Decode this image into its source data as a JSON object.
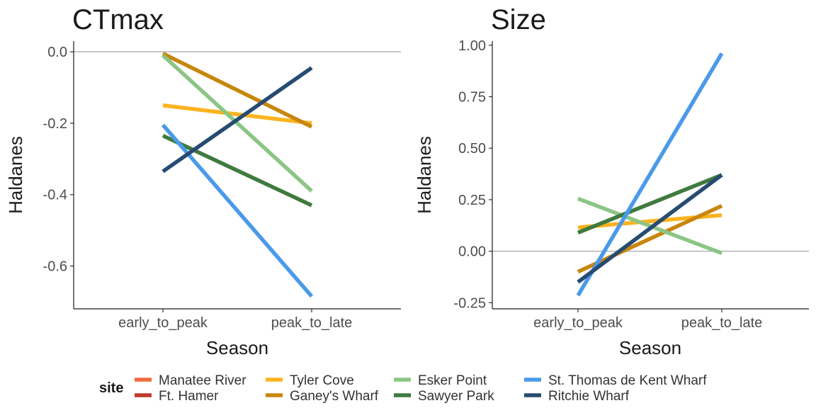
{
  "chart_data": [
    {
      "type": "line",
      "title": "CTmax",
      "xlabel": "Season",
      "ylabel": "Haldanes",
      "categories": [
        "early_to_peak",
        "peak_to_late"
      ],
      "yticks": [
        "0.0",
        "-0.2",
        "-0.4",
        "-0.6"
      ],
      "ytick_values": [
        0.0,
        -0.2,
        -0.4,
        -0.6
      ],
      "ylim": [
        -0.72,
        0.03
      ],
      "reference_line": 0,
      "series": [
        {
          "name": "Tyler Cove",
          "values": [
            -0.15,
            -0.2
          ]
        },
        {
          "name": "Ganey's Wharf",
          "values": [
            -0.005,
            -0.21
          ]
        },
        {
          "name": "Esker Point",
          "values": [
            -0.01,
            -0.39
          ]
        },
        {
          "name": "Sawyer Park",
          "values": [
            -0.235,
            -0.43
          ]
        },
        {
          "name": "St. Thomas de Kent Wharf",
          "values": [
            -0.205,
            -0.685
          ]
        },
        {
          "name": "Ritchie Wharf",
          "values": [
            -0.335,
            -0.045
          ]
        }
      ]
    },
    {
      "type": "line",
      "title": "Size",
      "xlabel": "Season",
      "ylabel": "Haldanes",
      "categories": [
        "early_to_peak",
        "peak_to_late"
      ],
      "yticks": [
        "1.00",
        "0.75",
        "0.50",
        "0.25",
        "0.00",
        "-0.25"
      ],
      "ytick_values": [
        1.0,
        0.75,
        0.5,
        0.25,
        0.0,
        -0.25
      ],
      "ylim": [
        -0.28,
        1.02
      ],
      "reference_line": 0,
      "series": [
        {
          "name": "Tyler Cove",
          "values": [
            0.115,
            0.175
          ]
        },
        {
          "name": "Ganey's Wharf",
          "values": [
            -0.1,
            0.22
          ]
        },
        {
          "name": "Esker Point",
          "values": [
            0.255,
            -0.01
          ]
        },
        {
          "name": "Sawyer Park",
          "values": [
            0.09,
            0.37
          ]
        },
        {
          "name": "St. Thomas de Kent Wharf",
          "values": [
            -0.215,
            0.96
          ]
        },
        {
          "name": "Ritchie Wharf",
          "values": [
            -0.15,
            0.37
          ]
        }
      ]
    }
  ],
  "legend": {
    "title": "site",
    "position": "bottom",
    "items": [
      {
        "name": "Manatee River",
        "color": "#f26a3d"
      },
      {
        "name": "Ft. Hamer",
        "color": "#c0392b"
      },
      {
        "name": "Tyler Cove",
        "color": "#fbb31f"
      },
      {
        "name": "Ganey's Wharf",
        "color": "#c8860d"
      },
      {
        "name": "Esker Point",
        "color": "#8cc585"
      },
      {
        "name": "Sawyer Park",
        "color": "#3f7a3e"
      },
      {
        "name": "St. Thomas de Kent Wharf",
        "color": "#4a9aea"
      },
      {
        "name": "Ritchie Wharf",
        "color": "#274b72"
      }
    ]
  }
}
